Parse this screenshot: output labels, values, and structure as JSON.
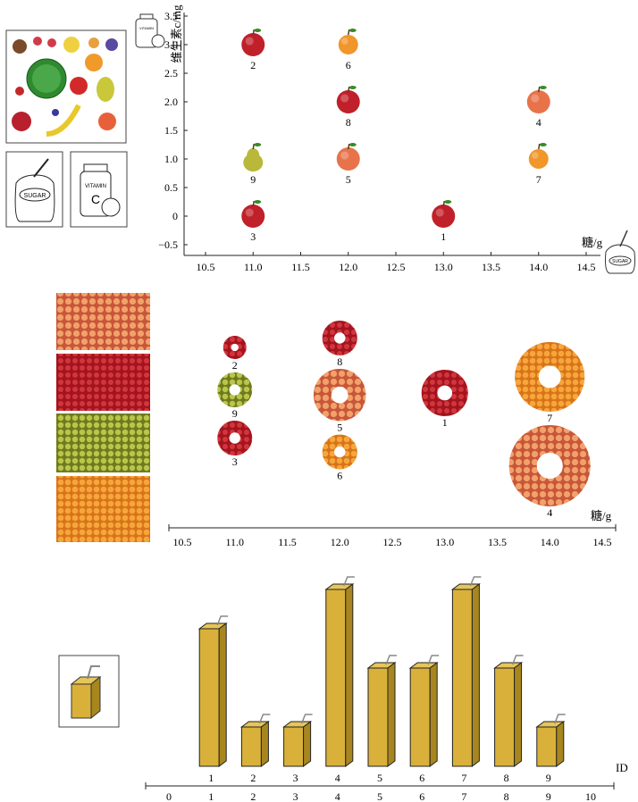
{
  "chart_data": [
    {
      "type": "scatter",
      "ylabel": "维生素c/mg",
      "xlabel": "糖/g",
      "xlim": [
        10.5,
        14.5
      ],
      "ylim": [
        -0.5,
        3.5
      ],
      "x_ticks": [
        "10.5",
        "11.0",
        "11.5",
        "12.0",
        "12.5",
        "13.0",
        "13.5",
        "14.0",
        "14.5"
      ],
      "y_ticks": [
        "−0.5",
        "0",
        "0.5",
        "1.0",
        "1.5",
        "2.0",
        "2.5",
        "3.0",
        "3.5"
      ],
      "points": [
        {
          "id": "1",
          "x": 13.0,
          "y": 0,
          "fruit": "apple"
        },
        {
          "id": "2",
          "x": 11.0,
          "y": 3.0,
          "fruit": "apple"
        },
        {
          "id": "3",
          "x": 11.0,
          "y": 0,
          "fruit": "apple"
        },
        {
          "id": "4",
          "x": 14.0,
          "y": 2.0,
          "fruit": "peach"
        },
        {
          "id": "5",
          "x": 12.0,
          "y": 1.0,
          "fruit": "peach"
        },
        {
          "id": "6",
          "x": 12.0,
          "y": 3.0,
          "fruit": "orange"
        },
        {
          "id": "7",
          "x": 14.0,
          "y": 1.0,
          "fruit": "orange"
        },
        {
          "id": "8",
          "x": 12.0,
          "y": 2.0,
          "fruit": "apple"
        },
        {
          "id": "9",
          "x": 11.0,
          "y": 1.0,
          "fruit": "pear"
        }
      ],
      "legend_images": [
        "fruits-collage",
        "sugar-bag",
        "vitamin-jar"
      ]
    },
    {
      "type": "scatter",
      "xlabel": "糖/g",
      "xlim": [
        10.5,
        14.5
      ],
      "x_ticks": [
        "10.5",
        "11.0",
        "11.5",
        "12.0",
        "12.5",
        "13.0",
        "13.5",
        "14.0",
        "14.5"
      ],
      "points": [
        {
          "id": "2",
          "x": 11.0,
          "size": 2,
          "fruit": "apple"
        },
        {
          "id": "9",
          "x": 11.0,
          "size": 3,
          "fruit": "pear"
        },
        {
          "id": "3",
          "x": 11.0,
          "size": 3,
          "fruit": "apple"
        },
        {
          "id": "8",
          "x": 12.0,
          "size": 3,
          "fruit": "apple"
        },
        {
          "id": "5",
          "x": 12.0,
          "size": 4.5,
          "fruit": "peach"
        },
        {
          "id": "6",
          "x": 12.0,
          "size": 3,
          "fruit": "orange"
        },
        {
          "id": "1",
          "x": 13.0,
          "size": 4,
          "fruit": "apple"
        },
        {
          "id": "7",
          "x": 14.0,
          "size": 6,
          "fruit": "orange"
        },
        {
          "id": "4",
          "x": 14.0,
          "size": 7,
          "fruit": "peach"
        }
      ],
      "legend_images": [
        "peaches-photo",
        "apples-photo",
        "pears-photo",
        "oranges-photo"
      ]
    },
    {
      "type": "bar",
      "xlabel": "ID",
      "xlim": [
        0,
        10
      ],
      "x_ticks": [
        "0",
        "1",
        "2",
        "3",
        "4",
        "5",
        "6",
        "7",
        "8",
        "9",
        "10"
      ],
      "categories": [
        "1",
        "2",
        "3",
        "4",
        "5",
        "6",
        "7",
        "8",
        "9"
      ],
      "values": [
        7.0,
        2.0,
        2.0,
        9.0,
        5.0,
        5.0,
        9.0,
        5.0,
        2.0
      ],
      "mark": "juice-box"
    }
  ],
  "colors": {
    "apple": "#c0202a",
    "peach": "#e8734a",
    "orange": "#f0962a",
    "pear": "#b8b83a",
    "juice": "#d9b13a",
    "juice_dark": "#a8861f",
    "axis": "#222222"
  }
}
